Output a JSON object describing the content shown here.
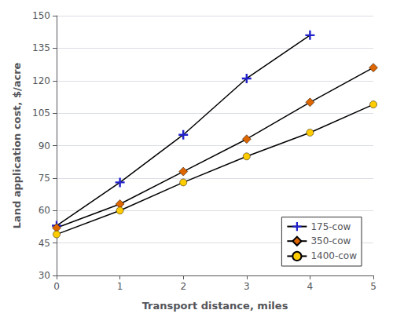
{
  "chart_data": {
    "type": "line",
    "title": "",
    "xlabel": "Transport distance, miles",
    "ylabel": "Land application cost, $/acre",
    "xlim": [
      0,
      5
    ],
    "ylim": [
      30,
      150
    ],
    "xticks": [
      0,
      1,
      2,
      3,
      4,
      5
    ],
    "yticks": [
      30,
      45,
      60,
      75,
      90,
      105,
      120,
      135,
      150
    ],
    "grid": true,
    "legend": "lower right",
    "series": [
      {
        "name": "175-cow",
        "color": "#2222cc",
        "marker": "plus",
        "line_style": "solid",
        "x": [
          0,
          1,
          2,
          3,
          4
        ],
        "values": [
          53,
          73,
          95,
          121,
          141
        ]
      },
      {
        "name": "350-cow",
        "color": "#dd6600",
        "marker": "diamond",
        "line_style": "solid",
        "x": [
          0,
          1,
          2,
          3,
          4,
          5
        ],
        "values": [
          52,
          63,
          78,
          93,
          110,
          126
        ]
      },
      {
        "name": "1400-cow",
        "color": "#ffcc00",
        "marker": "circle",
        "line_style": "solid",
        "x": [
          0,
          1,
          2,
          3,
          4,
          5
        ],
        "values": [
          49,
          60,
          73,
          85,
          96,
          109
        ]
      }
    ]
  }
}
